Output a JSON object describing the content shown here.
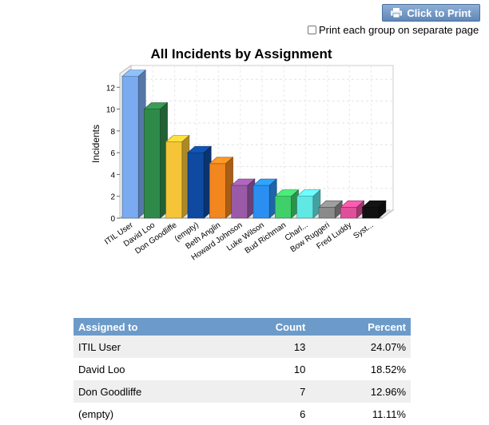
{
  "toolbar": {
    "print_label": "Click to Print",
    "print_icon": "printer-icon",
    "separate_page_label": "Print each group on separate page"
  },
  "chart_data": {
    "type": "bar",
    "title": "All Incidents by Assignment",
    "ylabel": "Incidents",
    "xlabel": "",
    "ylim": [
      0,
      13
    ],
    "yticks": [
      0,
      2,
      4,
      6,
      8,
      10,
      12
    ],
    "grid": true,
    "style": "3d",
    "categories": [
      "ITIL User",
      "David Loo",
      "Don Goodliffe",
      "(empty)",
      "Beth Anglin",
      "Howard Johnson",
      "Luke Wilson",
      "Bud Richman",
      "Charl...",
      "Bow Ruggeri",
      "Fred Luddy",
      "Syst..."
    ],
    "values": [
      13,
      10,
      7,
      6,
      5,
      3,
      3,
      2,
      2,
      1,
      1,
      1
    ],
    "colors": [
      "#7aaaf0",
      "#2f8a4a",
      "#f6c437",
      "#0d4aa0",
      "#f2861f",
      "#9a5aa7",
      "#2a8ff0",
      "#3fd06a",
      "#5fe8e4",
      "#8a8a8a",
      "#e0509a",
      "#111111"
    ]
  },
  "table": {
    "headers": {
      "assigned": "Assigned to",
      "count": "Count",
      "percent": "Percent"
    },
    "rows": [
      {
        "name": "ITIL User",
        "count": "13",
        "percent": "24.07%"
      },
      {
        "name": "David Loo",
        "count": "10",
        "percent": "18.52%"
      },
      {
        "name": "Don Goodliffe",
        "count": "7",
        "percent": "12.96%"
      },
      {
        "name": "(empty)",
        "count": "6",
        "percent": "11.11%"
      }
    ]
  }
}
